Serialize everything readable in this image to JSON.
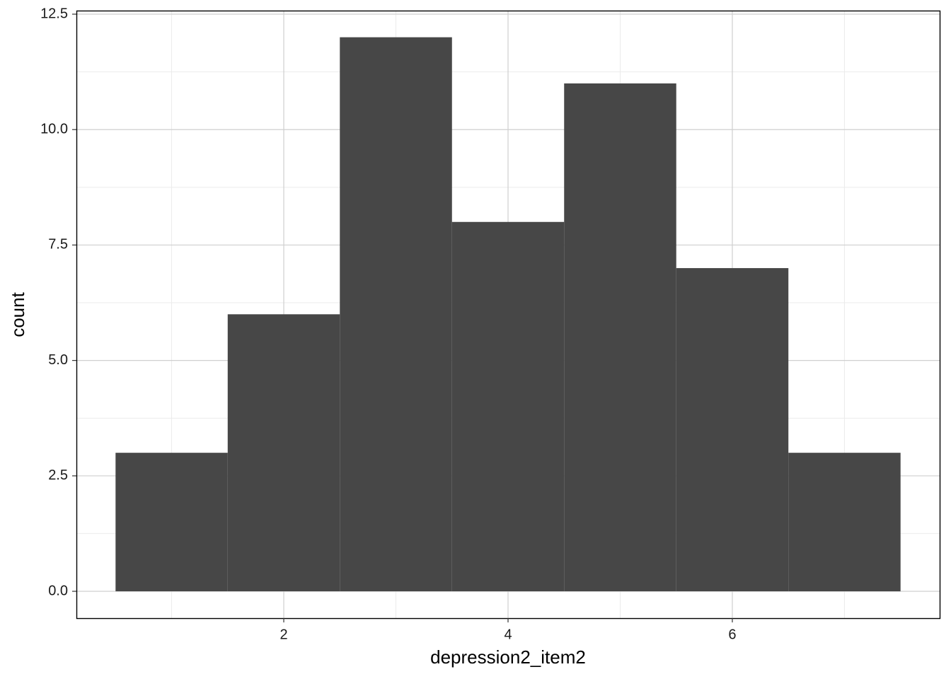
{
  "chart_data": {
    "type": "histogram",
    "x_label": "depression2_item2",
    "y_label": "count",
    "bins": [
      0.5,
      1.5,
      2.5,
      3.5,
      4.5,
      5.5,
      6.5,
      7.5
    ],
    "counts": [
      3,
      6,
      12,
      8,
      11,
      7,
      3
    ],
    "color": "#474747",
    "xlim": [
      0.151,
      7.849
    ],
    "ylim": [
      -0.582,
      12.577
    ],
    "xticks": [
      2,
      4,
      6
    ],
    "yticks": [
      {
        "value": 0,
        "label": "0.0"
      },
      2.5,
      {
        "value": 5,
        "label": "5.0"
      },
      7.5,
      {
        "value": 10,
        "label": "10.0"
      },
      12.5
    ],
    "grid": true
  }
}
